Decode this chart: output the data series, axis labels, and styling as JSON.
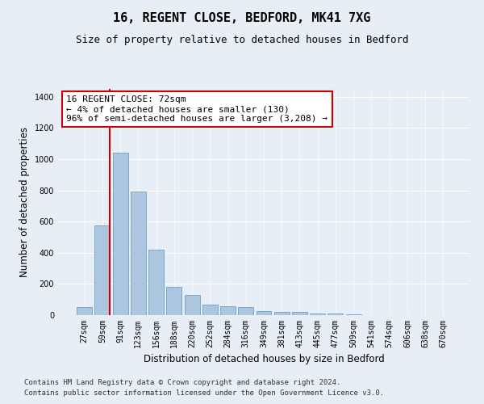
{
  "title1": "16, REGENT CLOSE, BEDFORD, MK41 7XG",
  "title2": "Size of property relative to detached houses in Bedford",
  "xlabel": "Distribution of detached houses by size in Bedford",
  "ylabel": "Number of detached properties",
  "categories": [
    "27sqm",
    "59sqm",
    "91sqm",
    "123sqm",
    "156sqm",
    "188sqm",
    "220sqm",
    "252sqm",
    "284sqm",
    "316sqm",
    "349sqm",
    "381sqm",
    "413sqm",
    "445sqm",
    "477sqm",
    "509sqm",
    "541sqm",
    "574sqm",
    "606sqm",
    "638sqm",
    "670sqm"
  ],
  "values": [
    50,
    575,
    1040,
    790,
    420,
    180,
    130,
    65,
    55,
    50,
    25,
    20,
    20,
    12,
    8,
    3,
    2,
    1,
    0,
    0,
    0
  ],
  "bar_color": "#adc6e0",
  "bar_edge_color": "#6aa0cc",
  "vline_index": 1,
  "vline_color": "#cc0000",
  "annotation_text": "16 REGENT CLOSE: 72sqm\n← 4% of detached houses are smaller (130)\n96% of semi-detached houses are larger (3,208) →",
  "annotation_box_color": "#ffffff",
  "annotation_border_color": "#cc0000",
  "ylim": [
    0,
    1450
  ],
  "yticks": [
    0,
    200,
    400,
    600,
    800,
    1000,
    1200,
    1400
  ],
  "bg_color": "#e8eef5",
  "plot_bg_color": "#e8eef5",
  "footer1": "Contains HM Land Registry data © Crown copyright and database right 2024.",
  "footer2": "Contains public sector information licensed under the Open Government Licence v3.0.",
  "title1_fontsize": 11,
  "title2_fontsize": 9,
  "axis_label_fontsize": 8.5,
  "tick_fontsize": 7,
  "annotation_fontsize": 8,
  "footer_fontsize": 6.5
}
